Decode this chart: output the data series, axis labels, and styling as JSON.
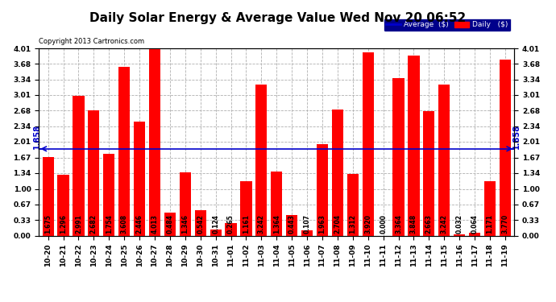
{
  "title": "Daily Solar Energy & Average Value Wed Nov 20 06:52",
  "copyright": "Copyright 2013 Cartronics.com",
  "categories": [
    "10-20",
    "10-21",
    "10-22",
    "10-23",
    "10-24",
    "10-25",
    "10-26",
    "10-27",
    "10-28",
    "10-29",
    "10-30",
    "10-31",
    "11-01",
    "11-02",
    "11-03",
    "11-04",
    "11-05",
    "11-06",
    "11-07",
    "11-08",
    "11-09",
    "11-10",
    "11-11",
    "11-12",
    "11-13",
    "11-14",
    "11-15",
    "11-16",
    "11-17",
    "11-18",
    "11-19"
  ],
  "values": [
    1.675,
    1.296,
    2.991,
    2.682,
    1.754,
    3.608,
    2.446,
    4.013,
    0.484,
    1.346,
    0.542,
    0.124,
    0.265,
    1.161,
    3.242,
    1.364,
    0.443,
    0.107,
    1.963,
    2.704,
    1.312,
    3.92,
    0.0,
    3.364,
    3.848,
    2.663,
    3.242,
    0.032,
    0.064,
    1.171,
    3.77
  ],
  "average": 1.858,
  "bar_color": "#ff0000",
  "average_line_color": "#0000cc",
  "background_color": "#ffffff",
  "plot_bg_color": "#ffffff",
  "grid_color": "#b0b0b0",
  "ylim": [
    0.0,
    4.01
  ],
  "yticks": [
    0.0,
    0.33,
    0.67,
    1.0,
    1.34,
    1.67,
    2.01,
    2.34,
    2.68,
    3.01,
    3.34,
    3.68,
    4.01
  ],
  "title_fontsize": 11,
  "tick_fontsize": 6.5,
  "bar_value_fontsize": 5.5,
  "avg_fontsize": 7,
  "legend_bg_color": "#00008b",
  "legend_text_color": "#ffffff",
  "avg_label": "Average  ($)",
  "daily_label": "Daily   ($)"
}
